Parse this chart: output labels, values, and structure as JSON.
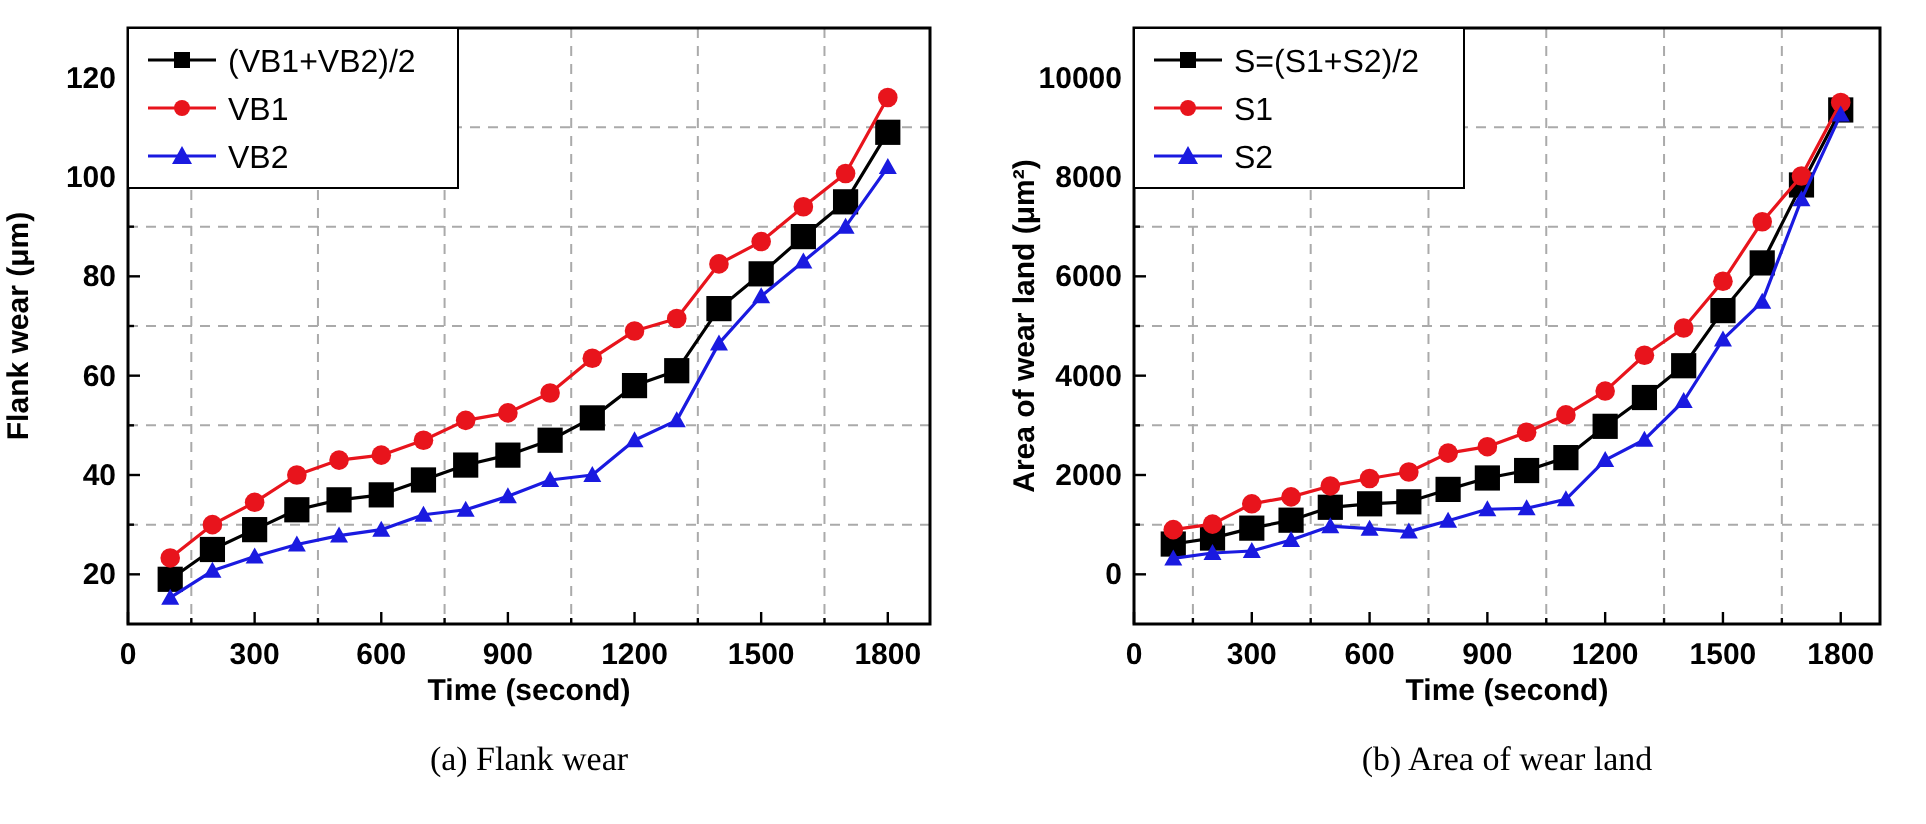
{
  "chart_data": [
    {
      "type": "line",
      "title": "(a) Flank wear",
      "xlabel": "Time (second)",
      "ylabel": "Flank wear (μm)",
      "grid": true,
      "legend": "top left",
      "line_style": "solid",
      "x": [
        100,
        200,
        300,
        400,
        500,
        600,
        700,
        800,
        900,
        1000,
        1100,
        1200,
        1300,
        1400,
        1500,
        1600,
        1700,
        1800
      ],
      "xlim": [
        0,
        1900
      ],
      "ylim": [
        10,
        130
      ],
      "xticks": [
        0,
        {
          "value": 150,
          "label": null
        },
        300,
        {
          "value": 450,
          "label": null
        },
        600,
        {
          "value": 750,
          "label": null
        },
        900,
        {
          "value": 1050,
          "label": null
        },
        1200,
        {
          "value": 1350,
          "label": null
        },
        1500,
        {
          "value": 1650,
          "label": null
        },
        1800
      ],
      "yticks": [
        20,
        {
          "value": 30,
          "label": null
        },
        40,
        {
          "value": 50,
          "label": null
        },
        60,
        {
          "value": 70,
          "label": null
        },
        80,
        {
          "value": 90,
          "label": null
        },
        100,
        {
          "value": 110,
          "label": null
        },
        120
      ],
      "series": [
        {
          "name": "(VB1+VB2)/2",
          "color": "#000000",
          "marker": "square",
          "values": [
            19,
            25,
            29,
            33,
            35,
            36,
            39,
            42,
            44,
            47,
            51.5,
            58,
            61,
            73.5,
            80.5,
            88,
            95,
            109
          ]
        },
        {
          "name": "VB1",
          "color": "#e8141c",
          "marker": "circle",
          "values": [
            23.3,
            30,
            34.5,
            40,
            43,
            44,
            47,
            51,
            52.5,
            56.5,
            63.5,
            69,
            71.5,
            82.5,
            87,
            94,
            100.7,
            116
          ]
        },
        {
          "name": "VB2",
          "color": "#1a1ae0",
          "marker": "triangle",
          "values": [
            15.3,
            20.7,
            23.6,
            26,
            27.8,
            29,
            32,
            33,
            35.7,
            39,
            40,
            47,
            51,
            66.5,
            76,
            83,
            90,
            102
          ]
        }
      ]
    },
    {
      "type": "line",
      "title": "(b) Area of wear land",
      "xlabel": "Time (second)",
      "ylabel": "Area of wear land (μm²)",
      "grid": true,
      "legend": "top left",
      "line_style": "solid",
      "x": [
        100,
        200,
        300,
        400,
        500,
        600,
        700,
        800,
        900,
        1000,
        1100,
        1200,
        1300,
        1400,
        1500,
        1600,
        1700,
        1800
      ],
      "xlim": [
        0,
        1900
      ],
      "ylim": [
        -1000,
        11000
      ],
      "xticks": [
        0,
        {
          "value": 150,
          "label": null
        },
        300,
        {
          "value": 450,
          "label": null
        },
        600,
        {
          "value": 750,
          "label": null
        },
        900,
        {
          "value": 1050,
          "label": null
        },
        1200,
        {
          "value": 1350,
          "label": null
        },
        1500,
        {
          "value": 1650,
          "label": null
        },
        1800
      ],
      "yticks": [
        0,
        {
          "value": 1000,
          "label": null
        },
        2000,
        {
          "value": 3000,
          "label": null
        },
        4000,
        {
          "value": 5000,
          "label": null
        },
        6000,
        {
          "value": 7000,
          "label": null
        },
        8000,
        {
          "value": 9000,
          "label": null
        },
        10000
      ],
      "series": [
        {
          "name": "S=(S1+S2)/2",
          "color": "#000000",
          "marker": "square",
          "values": [
            610,
            730,
            930,
            1090,
            1350,
            1420,
            1460,
            1710,
            1940,
            2090,
            2350,
            2980,
            3560,
            4200,
            5310,
            6270,
            7840,
            9350
          ]
        },
        {
          "name": "S1",
          "color": "#e8141c",
          "marker": "circle",
          "values": [
            900,
            1010,
            1420,
            1560,
            1780,
            1930,
            2060,
            2440,
            2570,
            2860,
            3210,
            3690,
            4410,
            4960,
            5900,
            7100,
            8020,
            9500
          ]
        },
        {
          "name": "S2",
          "color": "#1a1ae0",
          "marker": "triangle",
          "values": [
            320,
            430,
            470,
            690,
            970,
            920,
            860,
            1080,
            1310,
            1330,
            1510,
            2300,
            2710,
            3490,
            4730,
            5490,
            7550,
            9260
          ]
        }
      ]
    }
  ]
}
